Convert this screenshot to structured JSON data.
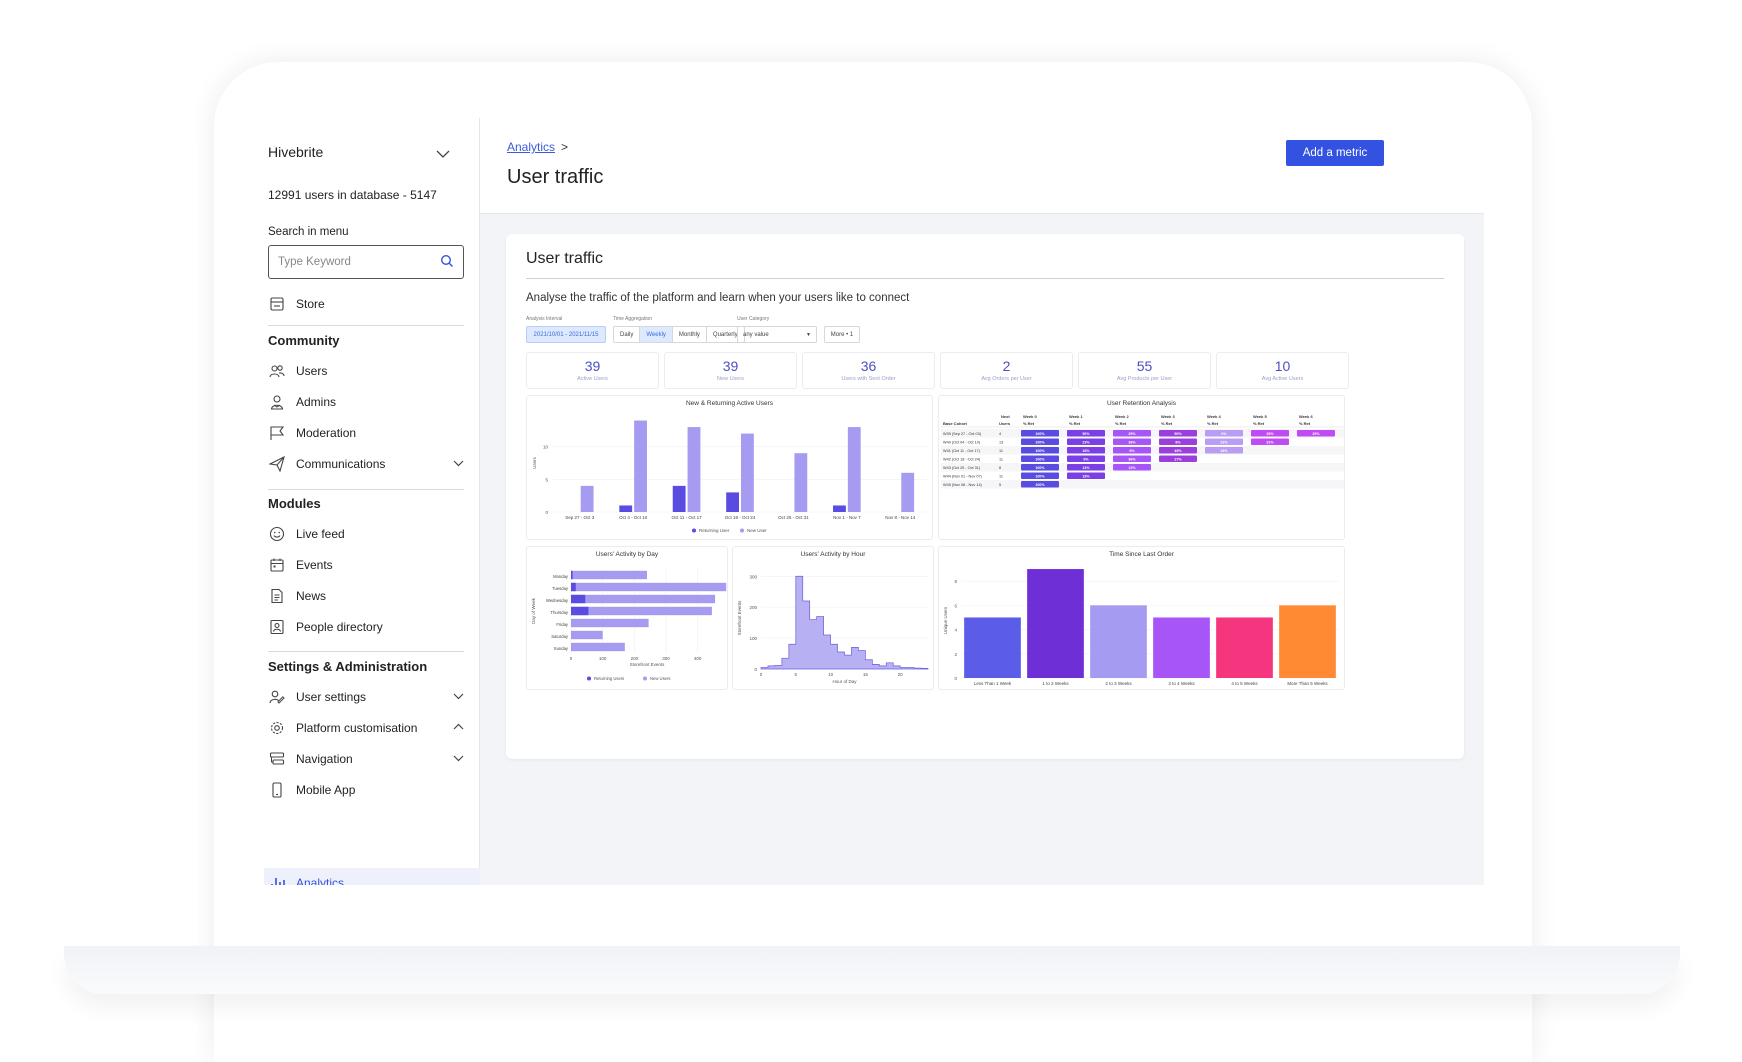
{
  "sidebar": {
    "org_name": "Hivebrite",
    "users_in_db": "12991 users in database - 5147",
    "search_label": "Search in menu",
    "search_placeholder": "Type Keyword",
    "store": "Store",
    "community_title": "Community",
    "community_items": [
      "Users",
      "Admins",
      "Moderation",
      "Communications"
    ],
    "modules_title": "Modules",
    "modules_items": [
      "Live feed",
      "Events",
      "News",
      "People directory"
    ],
    "settings_title": "Settings & Administration",
    "settings_items": [
      "User settings",
      "Platform customisation",
      "Navigation",
      "Mobile App"
    ],
    "active_item": "Analytics"
  },
  "header": {
    "breadcrumb": "Analytics",
    "breadcrumb_sep": ">",
    "title": "User traffic",
    "add_metric": "Add a metric"
  },
  "card": {
    "title": "User traffic",
    "description": "Analyse the traffic of the platform and learn when your users like to connect"
  },
  "filters": {
    "interval_label": "Analysis Interval",
    "interval_value": "2021/10/01 - 2021/11/15",
    "aggregation_label": "Time Aggregation",
    "aggregation_options": [
      "Daily",
      "Weekly",
      "Monthly",
      "Quarterly"
    ],
    "aggregation_selected": "Weekly",
    "category_label": "User Category",
    "category_value": "any value",
    "more": "More • 1"
  },
  "kpis": [
    {
      "value": "39",
      "label": "Active Users"
    },
    {
      "value": "39",
      "label": "New Users"
    },
    {
      "value": "36",
      "label": "Users with Sent Order"
    },
    {
      "value": "2",
      "label": "Avg Orders per User"
    },
    {
      "value": "55",
      "label": "Avg Products per User"
    },
    {
      "value": "10",
      "label": "Avg Active Users"
    }
  ],
  "colors": {
    "primary": "#3452e1",
    "returning": "#5a4ce0",
    "new": "#a59bf0"
  },
  "chart_data": [
    {
      "type": "bar",
      "title": "New & Returning Active Users",
      "ylabel": "Users",
      "categories": [
        "Sep 27 - Oct 3",
        "Oct 4 - Oct 10",
        "Oct 11 - Oct 17",
        "Oct 18 - Oct 24",
        "Oct 25 - Oct 31",
        "Nov 1 - Nov 7",
        "Nov 8 - Nov 14"
      ],
      "series": [
        {
          "name": "Returning User",
          "values": [
            0,
            1,
            4,
            3,
            0,
            1,
            0
          ]
        },
        {
          "name": "New User",
          "values": [
            4,
            14,
            13,
            12,
            9,
            13,
            6
          ]
        }
      ],
      "yticks": [
        0,
        5,
        10
      ],
      "ylim": [
        0,
        15
      ]
    },
    {
      "type": "table",
      "title": "User Retention Analysis",
      "header_top": [
        "Next",
        "Week 0",
        "Week 1",
        "Week 2",
        "Week 3",
        "Week 4",
        "Week 5",
        "Week 6"
      ],
      "header_sub": [
        "Base Cohort",
        "Users",
        "% Ret",
        "% Ret",
        "% Ret",
        "% Ret",
        "% Ret",
        "% Ret",
        "% Ret"
      ],
      "rows": [
        {
          "cohort": "W39 (Sep 27 - Oct 03)",
          "users": "4",
          "ret": [
            "100%",
            "50%",
            "25%",
            "50%",
            "0%",
            "25%",
            "25%"
          ]
        },
        {
          "cohort": "W40 (Oct 04 - Oct 10)",
          "users": "13",
          "ret": [
            "100%",
            "23%",
            "38%",
            "8%",
            "23%",
            "31%"
          ]
        },
        {
          "cohort": "W41 (Oct 11 - Oct 17)",
          "users": "11",
          "ret": [
            "100%",
            "18%",
            "9%",
            "45%",
            "18%"
          ]
        },
        {
          "cohort": "W42 (Oct 18 - Oct 24)",
          "users": "11",
          "ret": [
            "100%",
            "9%",
            "36%",
            "27%"
          ]
        },
        {
          "cohort": "W43 (Oct 25 - Oct 31)",
          "users": "8",
          "ret": [
            "100%",
            "13%",
            "13%"
          ]
        },
        {
          "cohort": "W44 (Nov 01 - Nov 07)",
          "users": "11",
          "ret": [
            "100%",
            "18%"
          ]
        },
        {
          "cohort": "W45 (Nov 08 - Nov 14)",
          "users": "5",
          "ret": [
            "100%"
          ]
        }
      ]
    },
    {
      "type": "bar",
      "title": "Users' Activity by Day",
      "orientation": "horizontal",
      "ylabel": "Day of Week",
      "xlabel": "Storefront Events",
      "categories": [
        "Monday",
        "Tuesday",
        "Wednesday",
        "Thursday",
        "Friday",
        "Saturday",
        "Sunday"
      ],
      "series": [
        {
          "name": "Returning Users",
          "values": [
            5,
            15,
            45,
            55,
            0,
            0,
            0
          ]
        },
        {
          "name": "New Users",
          "values": [
            235,
            475,
            410,
            390,
            245,
            100,
            170
          ]
        }
      ],
      "xticks": [
        0,
        100,
        200,
        300,
        400
      ],
      "xlim": [
        0,
        480
      ]
    },
    {
      "type": "area",
      "title": "Users' Activity by Hour",
      "ylabel": "Storefront Events",
      "xlabel": "Hour of Day",
      "x": [
        0,
        1,
        2,
        3,
        4,
        5,
        6,
        7,
        8,
        9,
        10,
        11,
        12,
        13,
        14,
        15,
        16,
        17,
        18,
        19,
        20,
        21,
        22,
        23
      ],
      "y": [
        5,
        10,
        12,
        35,
        80,
        300,
        220,
        160,
        170,
        110,
        80,
        55,
        45,
        70,
        60,
        30,
        15,
        10,
        20,
        10,
        5,
        5,
        3,
        2
      ],
      "xticks": [
        0,
        5,
        10,
        15,
        20
      ],
      "yticks": [
        0,
        100,
        200,
        300
      ],
      "ylim": [
        0,
        330
      ]
    },
    {
      "type": "bar",
      "title": "Time Since Last Order",
      "ylabel": "Unique Users",
      "categories": [
        "Less Than 1 Week",
        "1 to 2 Weeks",
        "2 to 3 Weeks",
        "3 to 4 Weeks",
        "4 to 5 Weeks",
        "More Than 5 Weeks"
      ],
      "values": [
        5,
        9,
        6,
        5,
        5,
        6
      ],
      "colors": [
        "#5b5de8",
        "#6f2fd6",
        "#a59bf0",
        "#a855f7",
        "#f5357e",
        "#ff8a33"
      ],
      "yticks": [
        0,
        2,
        4,
        6,
        8
      ],
      "ylim": [
        0,
        9.5
      ]
    }
  ]
}
